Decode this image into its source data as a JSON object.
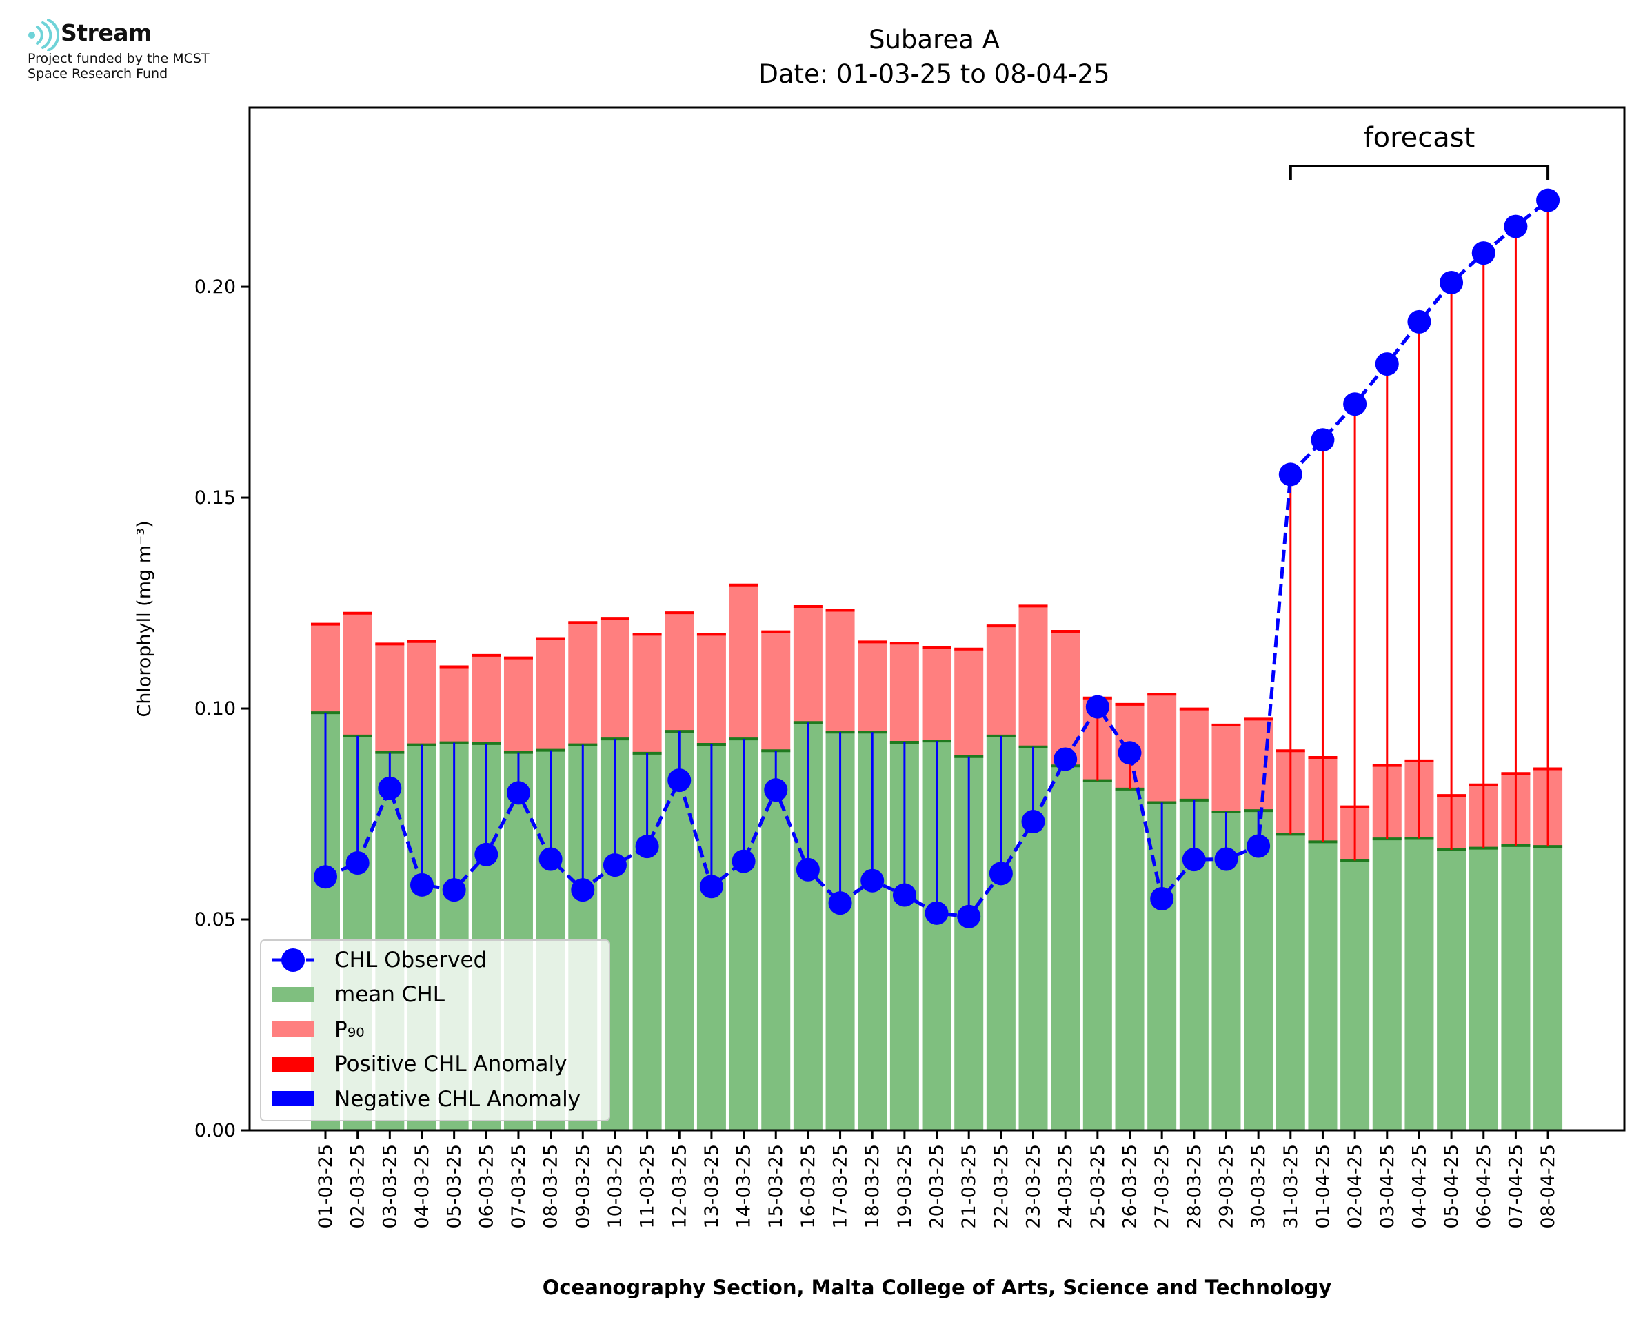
{
  "logo": {
    "name": "Stream",
    "line1": "Project funded by the MCST",
    "line2": "Space Research Fund",
    "color": "#6fd3d8"
  },
  "chart_data": {
    "type": "bar",
    "title": "Subarea A",
    "subtitle": "Date: 01-03-25 to 08-04-25",
    "xlabel": "Oceanography Section, Malta College of Arts, Science and Technology",
    "ylabel": "Chlorophyll (mg m⁻³)",
    "ylim": [
      0,
      0.2425
    ],
    "yticks": [
      "0.00",
      "0.05",
      "0.10",
      "0.15",
      "0.20"
    ],
    "ytick_values": [
      0.0,
      0.05,
      0.1,
      0.15,
      0.2
    ],
    "grid": false,
    "legend_position": "lower-left",
    "annotation": "forecast",
    "forecast_range": [
      "31-03-25",
      "08-04-25"
    ],
    "categories": [
      "01-03-25",
      "02-03-25",
      "03-03-25",
      "04-03-25",
      "05-03-25",
      "06-03-25",
      "07-03-25",
      "08-03-25",
      "09-03-25",
      "10-03-25",
      "11-03-25",
      "12-03-25",
      "13-03-25",
      "14-03-25",
      "15-03-25",
      "16-03-25",
      "17-03-25",
      "18-03-25",
      "19-03-25",
      "20-03-25",
      "21-03-25",
      "22-03-25",
      "23-03-25",
      "24-03-25",
      "25-03-25",
      "26-03-25",
      "27-03-25",
      "28-03-25",
      "29-03-25",
      "30-03-25",
      "31-03-25",
      "01-04-25",
      "02-04-25",
      "03-04-25",
      "04-04-25",
      "05-04-25",
      "06-04-25",
      "07-04-25",
      "08-04-25"
    ],
    "series": [
      {
        "name": "CHL Observed",
        "color": "#0000ff",
        "values": [
          0.0601,
          0.0634,
          0.0811,
          0.0582,
          0.057,
          0.0654,
          0.08,
          0.0643,
          0.057,
          0.0629,
          0.0673,
          0.083,
          0.0578,
          0.0638,
          0.0807,
          0.0618,
          0.0539,
          0.0592,
          0.0558,
          0.0515,
          0.0507,
          0.0609,
          0.0732,
          0.088,
          0.1004,
          0.0895,
          0.0549,
          0.0642,
          0.0643,
          0.0674,
          0.1555,
          0.1637,
          0.1722,
          0.1817,
          0.1917,
          0.201,
          0.208,
          0.2143,
          0.2205
        ]
      },
      {
        "name": "mean CHL",
        "color": "#7fbf7f",
        "values": [
          0.099,
          0.0935,
          0.0896,
          0.0914,
          0.0919,
          0.0917,
          0.0896,
          0.0901,
          0.0914,
          0.0928,
          0.0894,
          0.0946,
          0.0915,
          0.0928,
          0.09,
          0.0967,
          0.0944,
          0.0944,
          0.092,
          0.0923,
          0.0886,
          0.0935,
          0.0909,
          0.0864,
          0.0829,
          0.0809,
          0.0777,
          0.0783,
          0.0755,
          0.0758,
          0.0702,
          0.0684,
          0.064,
          0.0691,
          0.0692,
          0.0665,
          0.0669,
          0.0675,
          0.0673
        ]
      },
      {
        "name": "P₉₀",
        "color": "#ff7f7f",
        "values": [
          0.12,
          0.1226,
          0.1153,
          0.1159,
          0.1099,
          0.1126,
          0.112,
          0.1166,
          0.1204,
          0.1214,
          0.1176,
          0.1227,
          0.1176,
          0.1293,
          0.1182,
          0.1242,
          0.1233,
          0.1158,
          0.1155,
          0.1144,
          0.1141,
          0.1196,
          0.1243,
          0.1183,
          0.1025,
          0.101,
          0.1034,
          0.0999,
          0.0961,
          0.0975,
          0.09,
          0.0884,
          0.0767,
          0.0865,
          0.0876,
          0.0794,
          0.0819,
          0.0846,
          0.0857
        ]
      },
      {
        "name": "Positive CHL Anomaly",
        "color": "#ff0000"
      },
      {
        "name": "Negative CHL Anomaly",
        "color": "#0000ff"
      }
    ]
  }
}
